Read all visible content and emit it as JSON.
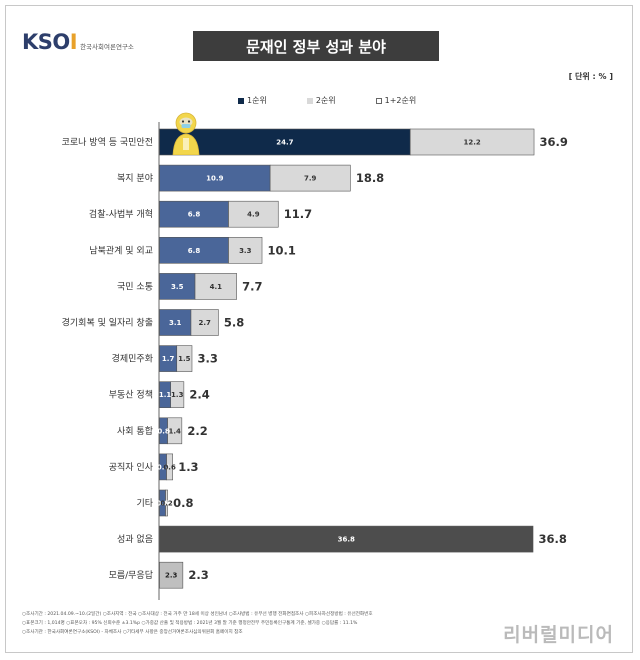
{
  "header": {
    "logo_text": "KSOI",
    "logo_subtitle": "한국사회여론연구소",
    "title": "문재인 정부 성과 분야",
    "unit": "[ 단위 : % ]"
  },
  "legend": {
    "items": [
      {
        "label": "1순위",
        "color": "#0f2a4a"
      },
      {
        "label": "2순위",
        "color": "#d9d9d9"
      },
      {
        "label": "1+2순위",
        "color": "#ffffff"
      }
    ]
  },
  "chart_data": {
    "type": "bar",
    "orientation": "horizontal",
    "stacked": true,
    "title": "문재인 정부 성과 분야",
    "unit": "%",
    "categories": [
      "코로나 방역 등 국민안전",
      "복지 분야",
      "검찰-사법부 개혁",
      "남북관계 및 외교",
      "국민 소통",
      "경기회복 및 일자리 창출",
      "경제민주화",
      "부동산 정책",
      "사회 통합",
      "공직자 인사",
      "기타",
      "성과 없음",
      "모름/무응답"
    ],
    "series": [
      {
        "name": "1순위",
        "values": [
          24.7,
          10.9,
          6.8,
          6.8,
          3.5,
          3.1,
          1.7,
          1.1,
          0.8,
          0.7,
          0.6,
          36.8,
          2.3
        ],
        "colors": [
          "#0f2a4a",
          "#4a6699",
          "#4a6699",
          "#4a6699",
          "#4a6699",
          "#4a6699",
          "#4a6699",
          "#4a6699",
          "#4a6699",
          "#4a6699",
          "#4a6699",
          "#4d4d4d",
          "#bfbfbf"
        ]
      },
      {
        "name": "2순위",
        "values": [
          12.2,
          7.9,
          4.9,
          3.3,
          4.1,
          2.7,
          1.5,
          1.3,
          1.4,
          0.6,
          0.2,
          0,
          0
        ]
      }
    ],
    "segment_labels": [
      [
        "24.7",
        "12.2"
      ],
      [
        "10.9",
        "7.9"
      ],
      [
        "6.8",
        "4.9"
      ],
      [
        "6.8",
        "3.3"
      ],
      [
        "3.5",
        "4.1"
      ],
      [
        "3.1",
        "2.7"
      ],
      [
        "1.7",
        "1.5"
      ],
      [
        "1.1",
        "1.3"
      ],
      [
        "0.8",
        "1.4"
      ],
      [
        "0.7",
        "0.6"
      ],
      [
        "0.6",
        "0.2"
      ],
      [
        "36.8",
        ""
      ],
      [
        "2.3",
        ""
      ]
    ],
    "totals": [
      36.9,
      18.8,
      11.7,
      10.1,
      7.7,
      5.8,
      3.3,
      2.4,
      2.2,
      1.3,
      0.8,
      36.8,
      2.3
    ],
    "xlim": [
      0,
      40
    ],
    "grid": false,
    "legend_position": "top"
  },
  "footnotes": [
    "○조사기간 : 2021.04.09.~10.(2일간)  ○조사지역 : 전국  ○조사대상 : 전국 거주 만 18세 이상 성인남녀  ○조사방법 : 유무선 병행 전화면접조사  ○피조사자선정방법 : 유선전화번호",
    "○표본크기 : 1,014명  ○표본오차 : 95% 신뢰수준 ±3.1%p  ○가중값 산출 및 적용방법 : 2021년 3월 말 기준 행정안전부 주민등록인구통계 기준, 셀가중  ○응답률 : 11.1%",
    "○조사기관 : 한국사회여론연구소(KSOI) - 자체조사  ○기타세부 사항은 중앙선거여론조사심의위원회 홈페이지 참조"
  ],
  "watermark": "리버럴미디어"
}
